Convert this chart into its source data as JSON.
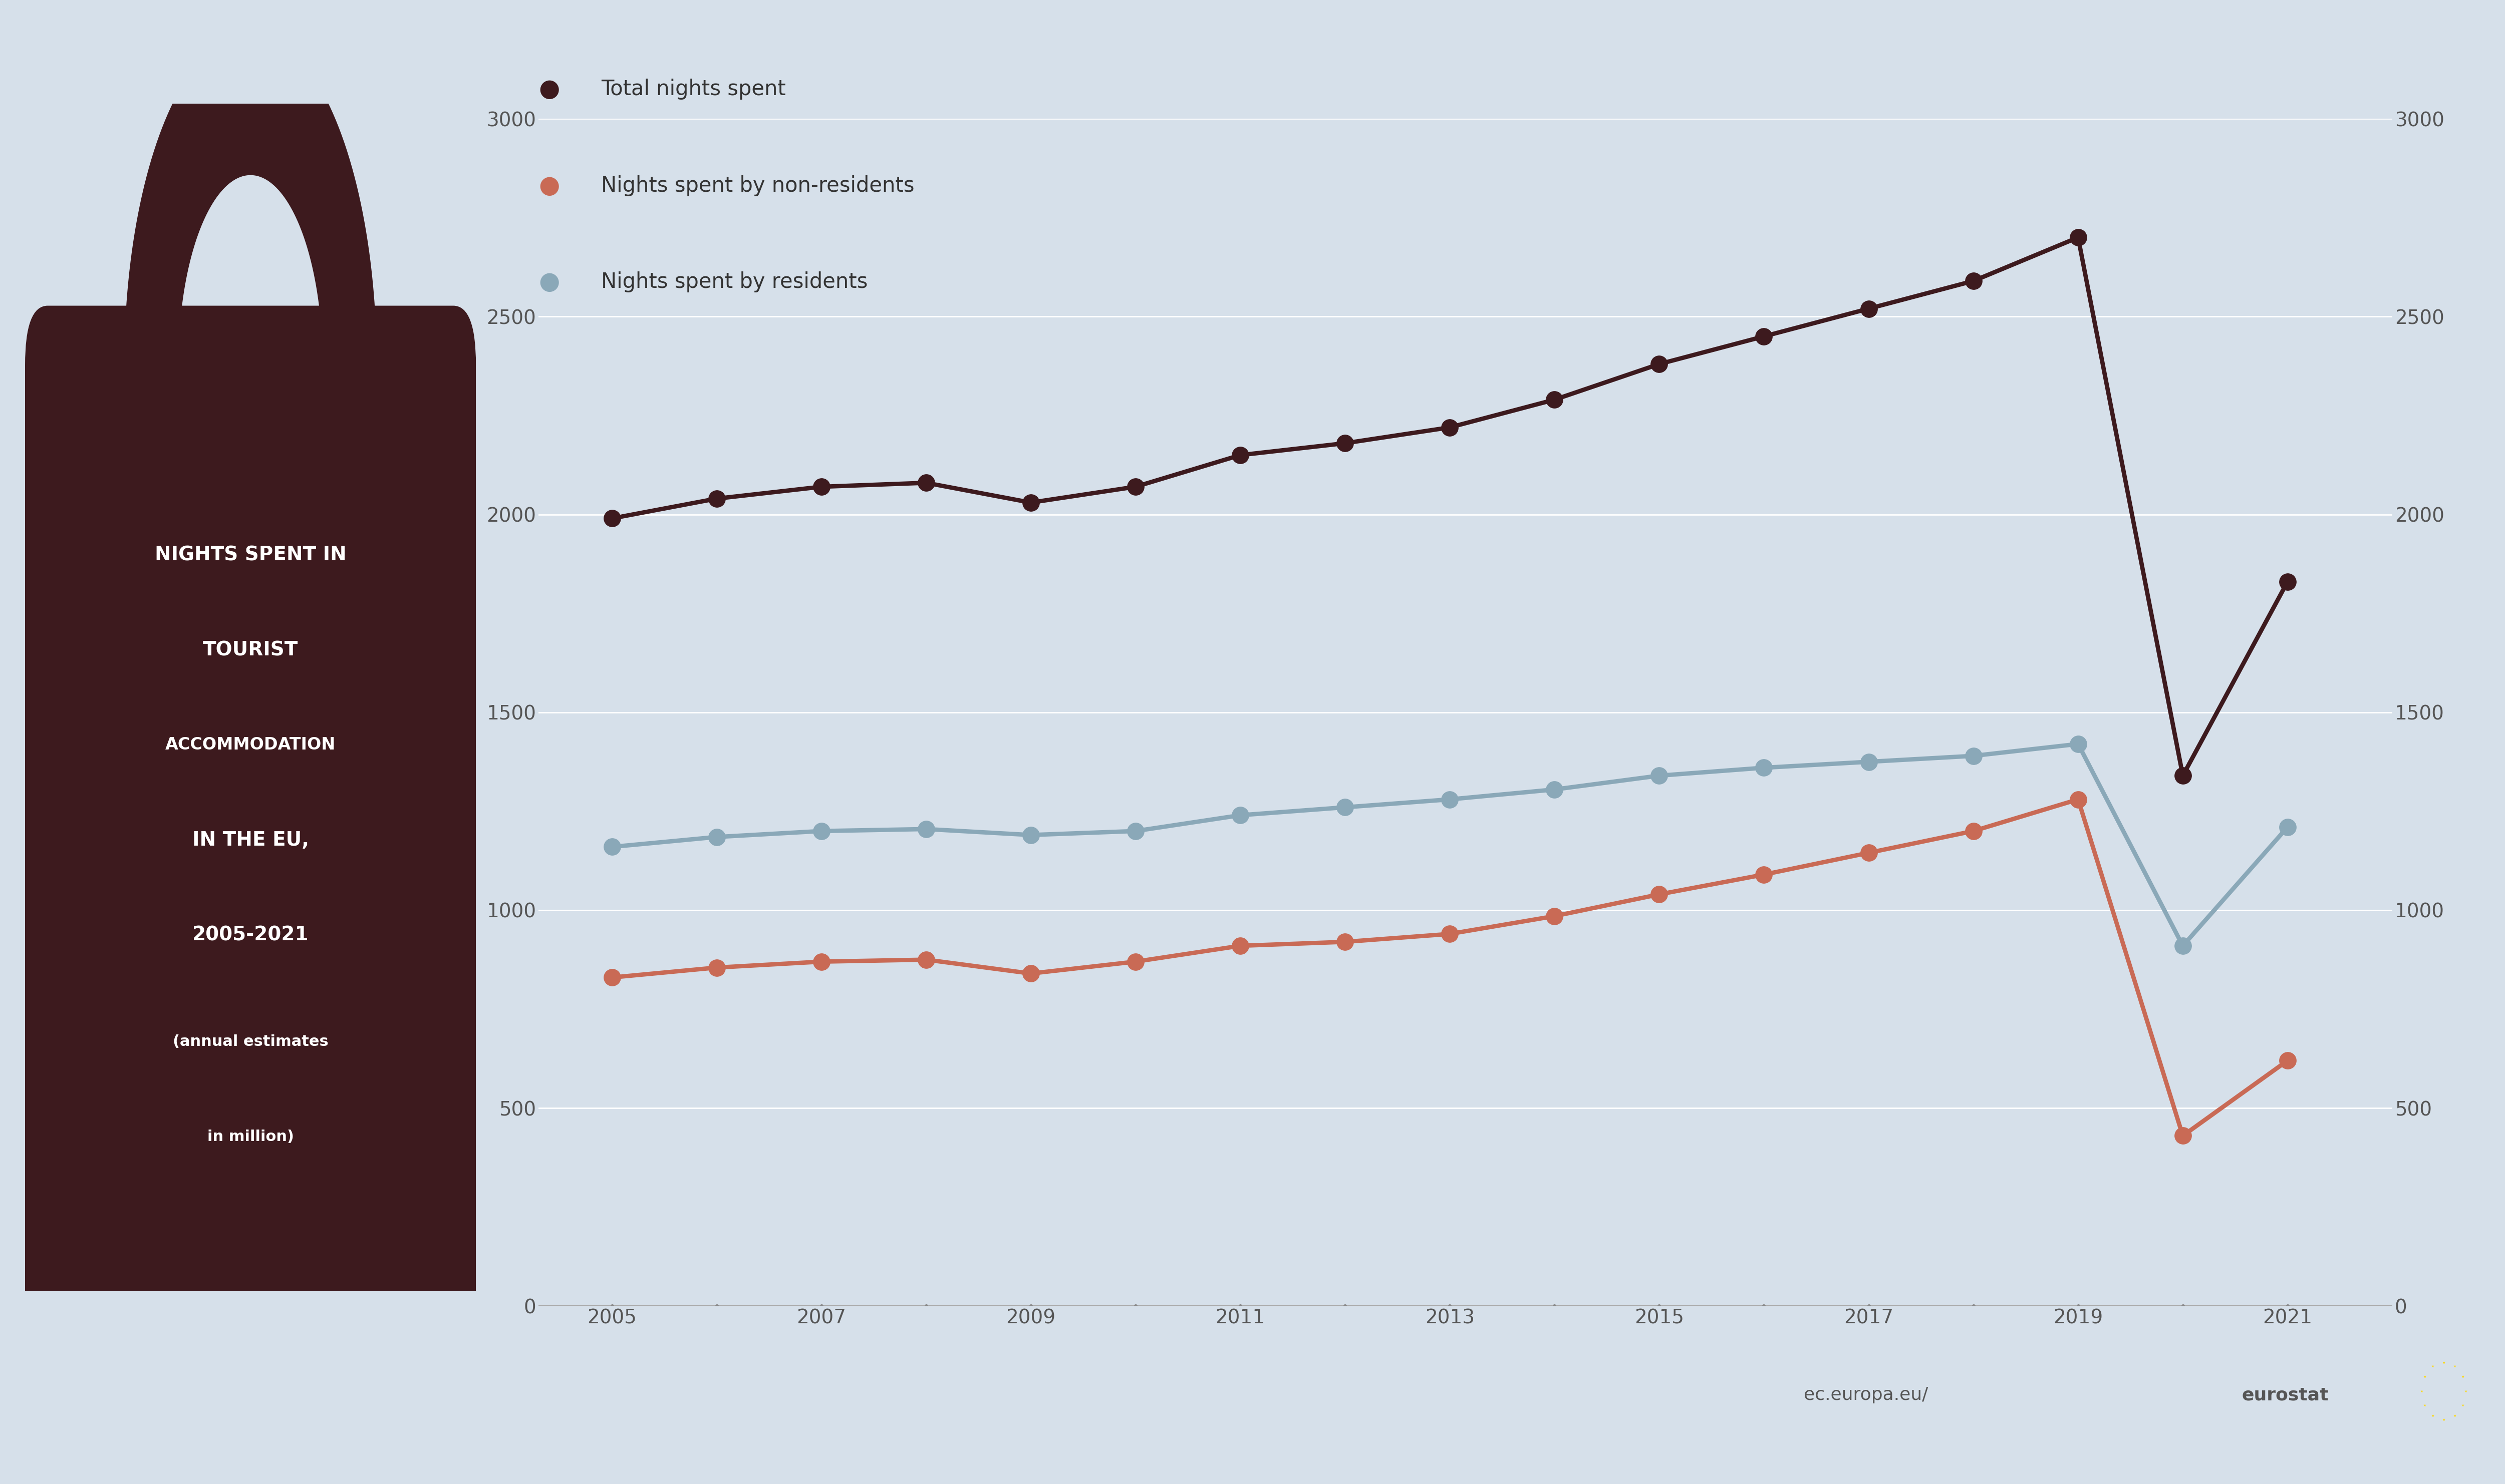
{
  "years": [
    2005,
    2006,
    2007,
    2008,
    2009,
    2010,
    2011,
    2012,
    2013,
    2014,
    2015,
    2016,
    2017,
    2018,
    2019,
    2020,
    2021
  ],
  "total_nights": [
    1990,
    2040,
    2070,
    2080,
    2030,
    2070,
    2150,
    2180,
    2220,
    2290,
    2380,
    2450,
    2520,
    2590,
    2700,
    1340,
    1830
  ],
  "non_residents": [
    830,
    855,
    870,
    875,
    840,
    870,
    910,
    920,
    940,
    985,
    1040,
    1090,
    1145,
    1200,
    1280,
    430,
    620
  ],
  "residents": [
    1160,
    1185,
    1200,
    1205,
    1190,
    1200,
    1240,
    1260,
    1280,
    1305,
    1340,
    1360,
    1375,
    1390,
    1420,
    910,
    1210
  ],
  "total_color": "#3d1a1e",
  "non_resident_color": "#c96a55",
  "resident_color": "#8aa8b8",
  "background_color": "#d6e0ea",
  "legend_label_total": "Total nights spent",
  "legend_label_non_residents": "Nights spent by non-residents",
  "legend_label_residents": "Nights spent by residents",
  "ylim": [
    0,
    3000
  ],
  "yticks": [
    0,
    500,
    1000,
    1500,
    2000,
    2500,
    3000
  ],
  "marker_size": 8,
  "line_width": 2.5,
  "font_color": "#3d1a1e",
  "title_text_line1": "NIGHTS SPENT IN",
  "title_text_line2": "TOURIST",
  "title_text_line3": "ACCOMMODATION",
  "title_text_line4": "IN THE EU,",
  "title_text_line5": "2005-2021",
  "title_text_line6": "(annual estimates",
  "title_text_line7": "in million)",
  "eurostat_text": "ec.europa.eu/",
  "eurostat_bold": "eurostat",
  "grid_color": "#ffffff",
  "axis_color": "#aaaaaa"
}
